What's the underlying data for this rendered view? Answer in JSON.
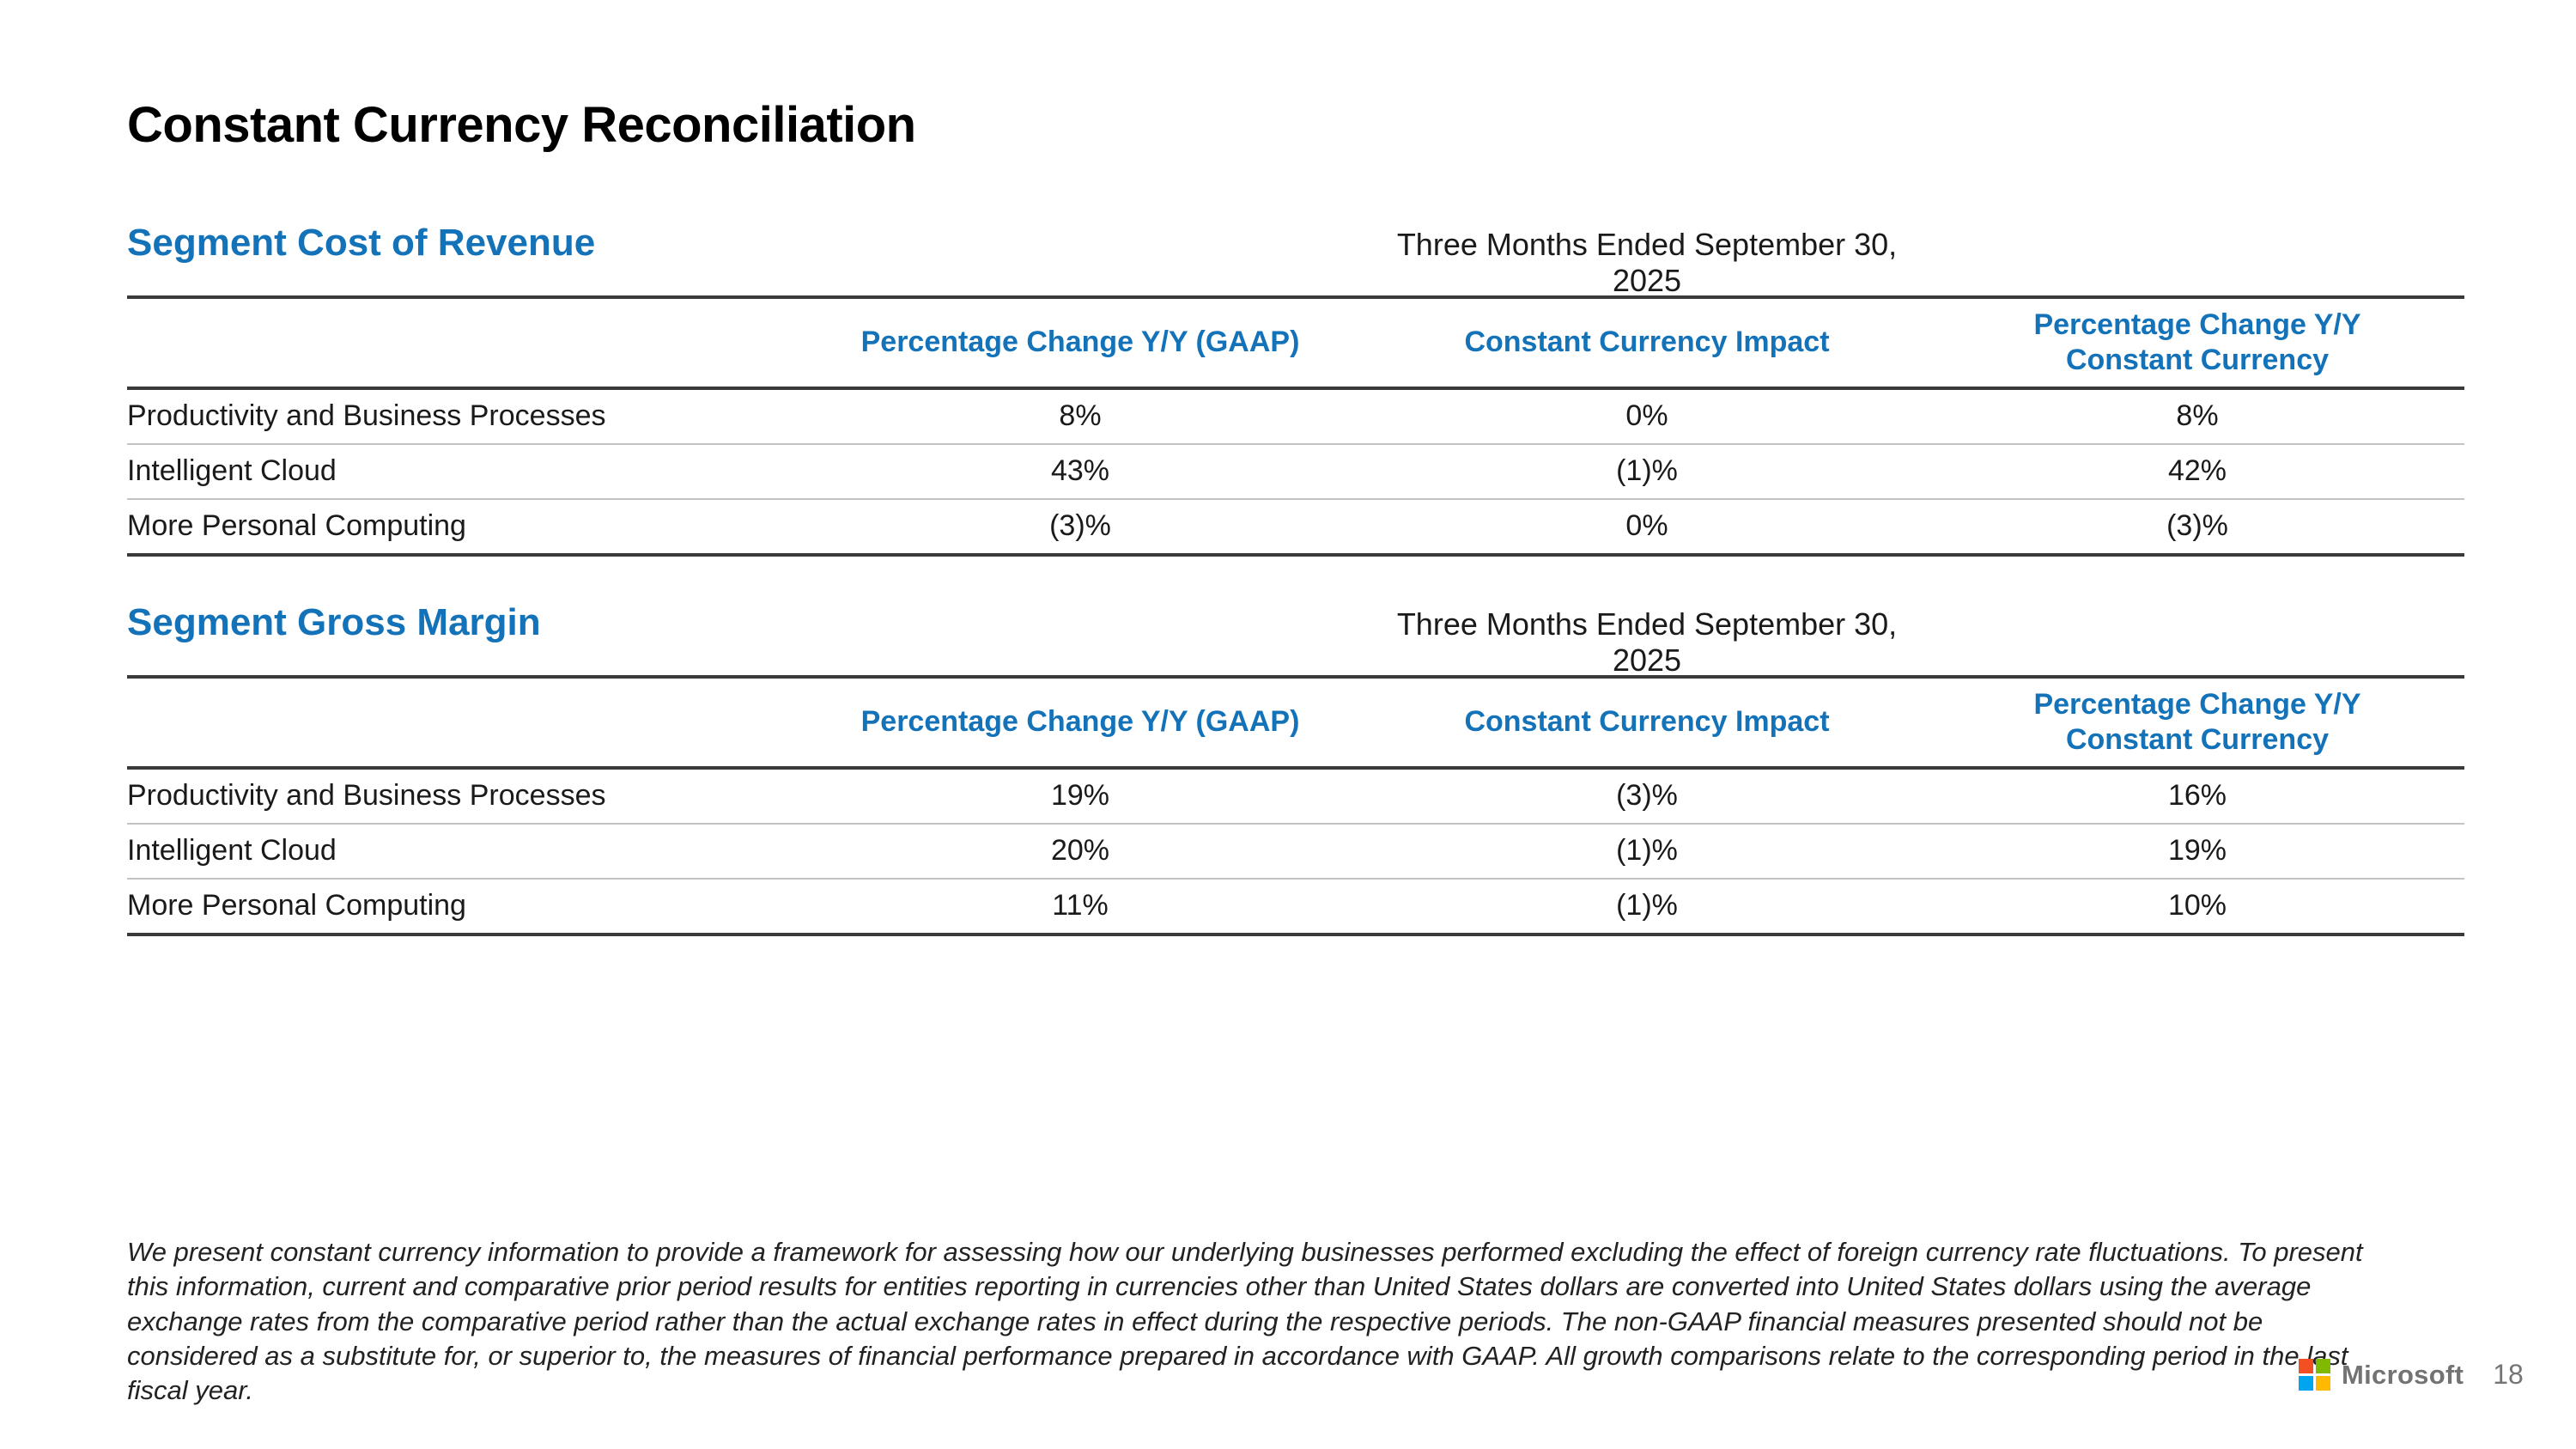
{
  "page": {
    "title": "Constant Currency Reconciliation",
    "brand": "Microsoft",
    "page_number": "18"
  },
  "colors": {
    "accent_blue": "#1372b8",
    "text_black": "#000000",
    "text_dark": "#1a1a1a",
    "rule_dark": "#3a3a3a",
    "rule_light": "#c3c3c3",
    "logo_gray": "#737373",
    "ms_red": "#f25022",
    "ms_green": "#7fba00",
    "ms_blue": "#00a4ef",
    "ms_yellow": "#ffb900"
  },
  "sections": [
    {
      "heading": "Segment Cost of Revenue",
      "period_label": "Three Months Ended September 30, 2025",
      "columns": [
        "Percentage Change Y/Y (GAAP)",
        "Constant Currency Impact",
        "Percentage Change Y/Y\nConstant Currency"
      ],
      "rows": [
        {
          "label": "Productivity and Business Processes",
          "values": [
            "8%",
            "0%",
            "8%"
          ]
        },
        {
          "label": "Intelligent Cloud",
          "values": [
            "43%",
            "(1)%",
            "42%"
          ]
        },
        {
          "label": "More Personal Computing",
          "values": [
            "(3)%",
            "0%",
            "(3)%"
          ]
        }
      ]
    },
    {
      "heading": "Segment Gross Margin",
      "period_label": "Three Months Ended September 30, 2025",
      "columns": [
        "Percentage Change Y/Y (GAAP)",
        "Constant Currency Impact",
        "Percentage Change Y/Y\nConstant Currency"
      ],
      "rows": [
        {
          "label": "Productivity and Business Processes",
          "values": [
            "19%",
            "(3)%",
            "16%"
          ]
        },
        {
          "label": "Intelligent Cloud",
          "values": [
            "20%",
            "(1)%",
            "19%"
          ]
        },
        {
          "label": "More Personal Computing",
          "values": [
            "11%",
            "(1)%",
            "10%"
          ]
        }
      ]
    }
  ],
  "footnote": "We present constant currency information to provide a framework for assessing how our underlying businesses performed excluding the effect of foreign currency rate fluctuations. To present this information, current and comparative prior period results for entities reporting in currencies other than United States dollars are converted into United States dollars using the average exchange rates from the comparative period rather than the actual exchange rates in effect during the respective periods. The non-GAAP financial measures presented should not be considered as a substitute for, or superior to, the measures of financial performance prepared in accordance with GAAP. All growth comparisons relate to the corresponding period in the last fiscal year."
}
